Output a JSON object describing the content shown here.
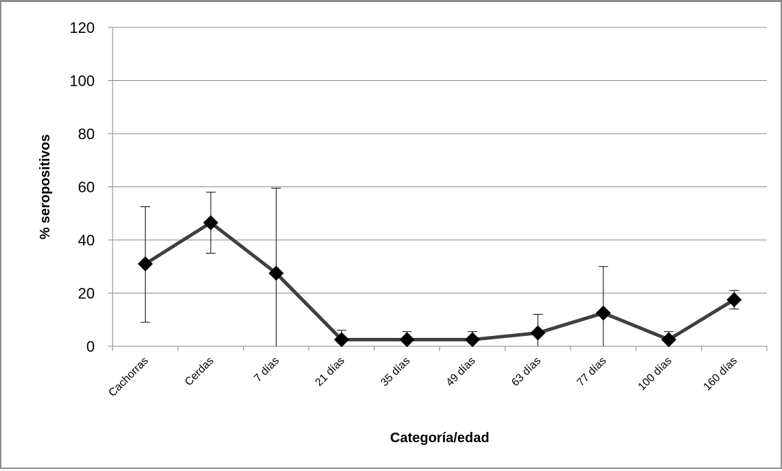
{
  "chart_data": {
    "type": "line",
    "title": "",
    "xlabel": "Categoría/edad",
    "ylabel": "% seropositivos",
    "categories": [
      "Cachorras",
      "Cerdas",
      "7 días",
      "21 días",
      "35 días",
      "49 días",
      "63 días",
      "77 días",
      "100 días",
      "160 días"
    ],
    "series": [
      {
        "values": [
          31,
          46.5,
          27.5,
          2.5,
          2.5,
          2.5,
          5,
          12.5,
          2.5,
          17.5
        ],
        "error_low": [
          9,
          35,
          0,
          0,
          0,
          0,
          0,
          0,
          0,
          14
        ],
        "error_high": [
          52.5,
          58,
          59.5,
          6,
          5.5,
          5.5,
          12,
          30,
          5.5,
          21
        ]
      }
    ],
    "ylim": [
      0,
      120
    ],
    "yticks": [
      0,
      20,
      40,
      60,
      80,
      100,
      120
    ],
    "grid": true,
    "legend": "none",
    "colors": {
      "line": "#404040",
      "marker": "#000000",
      "grid": "#868686",
      "error_bar": "#000000"
    }
  }
}
